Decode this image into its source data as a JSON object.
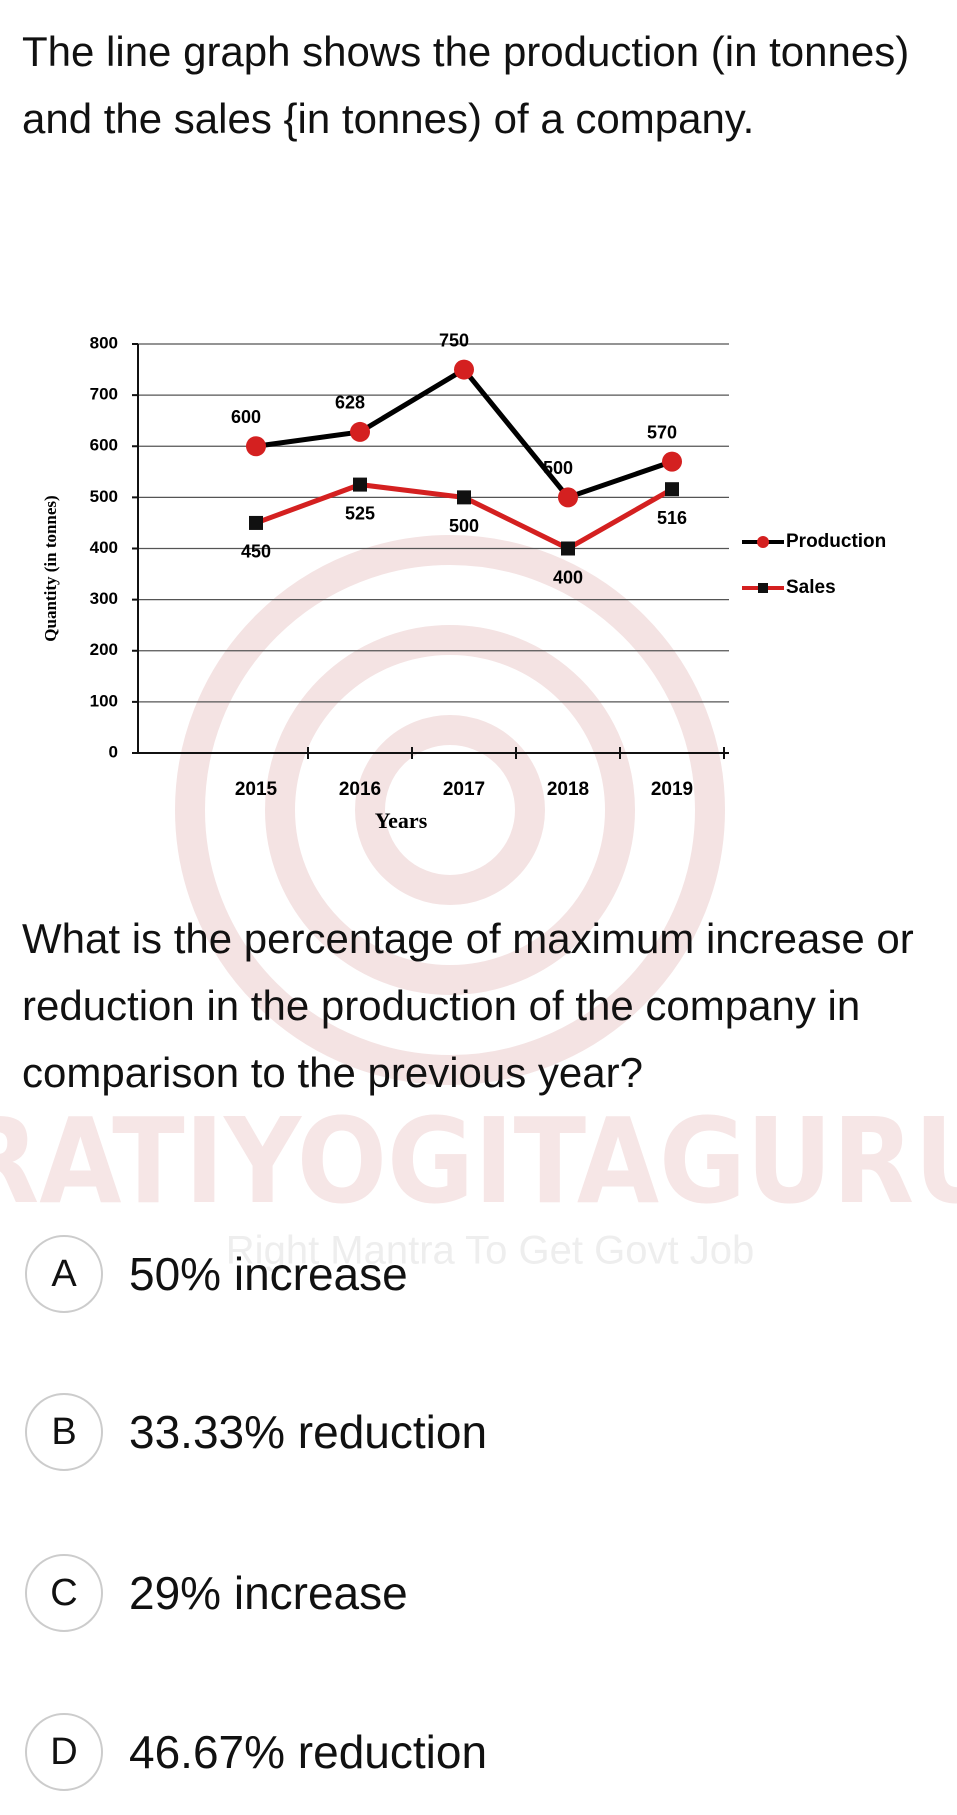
{
  "question": "The line graph shows the production (in tonnes) and the sales {in tonnes) of a company.",
  "chart_data": {
    "type": "line",
    "x_label": "Years",
    "y_label": "Quantity (in tonnes)",
    "categories": [
      "2015",
      "2016",
      "2017",
      "2018",
      "2019"
    ],
    "series": [
      {
        "name": "Production",
        "color": "#000000",
        "marker_color": "#d42020",
        "marker": "circle",
        "values": [
          600,
          628,
          750,
          500,
          570
        ]
      },
      {
        "name": "Sales",
        "color": "#d42020",
        "marker_color": "#111111",
        "marker": "square",
        "values": [
          450,
          525,
          500,
          400,
          516
        ]
      }
    ],
    "ylim": [
      0,
      800
    ],
    "yticks": [
      0,
      100,
      200,
      300,
      400,
      500,
      600,
      700,
      800
    ],
    "grid": true,
    "legend": "right"
  },
  "watermark": {
    "brand": "PRATIYOGITAGURU",
    "tagline": "Right Mantra To Get Govt Job"
  },
  "prompt": "What is the percentage of maximum increase or reduction in the production of the company in comparison to the previous year?",
  "options": [
    {
      "letter": "A",
      "text": "50% increase"
    },
    {
      "letter": "B",
      "text": "33.33% reduction"
    },
    {
      "letter": "C",
      "text": "29% increase"
    },
    {
      "letter": "D",
      "text": "46.67% reduction"
    }
  ]
}
